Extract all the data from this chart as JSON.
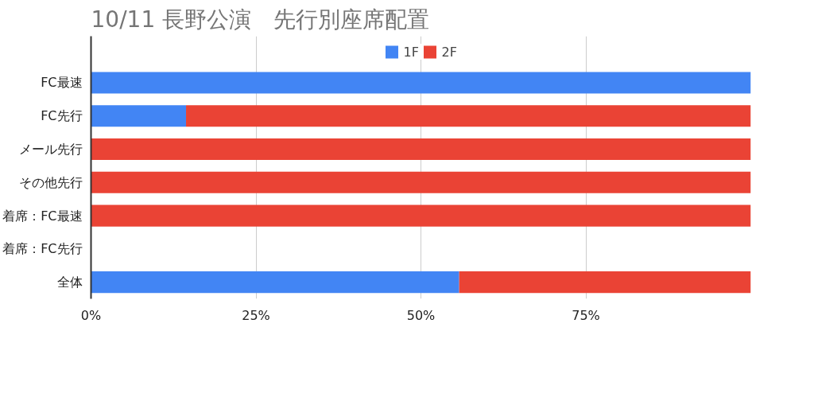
{
  "chart_data": {
    "type": "bar",
    "title": "10/11 長野公演　先行別座席配置",
    "orientation": "horizontal",
    "stacked": true,
    "categories": [
      "FC最速",
      "FC先行",
      "メール先行",
      "その他先行",
      "着席：FC最速",
      "着席：FC先行",
      "全体"
    ],
    "series": [
      {
        "name": "1F",
        "color": "#4285f4",
        "values": [
          100,
          14.4,
          0,
          0,
          0,
          null,
          55.8
        ]
      },
      {
        "name": "2F",
        "color": "#ea4335",
        "values": [
          0,
          85.6,
          100,
          100,
          100,
          null,
          44.2
        ]
      }
    ],
    "xlim": [
      0,
      100
    ],
    "xticks": [
      {
        "value": 0,
        "label": "0%"
      },
      {
        "value": 25,
        "label": "25%"
      },
      {
        "value": 50,
        "label": "50%"
      },
      {
        "value": 75,
        "label": "75%"
      }
    ],
    "grid": "x",
    "legend": "top"
  }
}
